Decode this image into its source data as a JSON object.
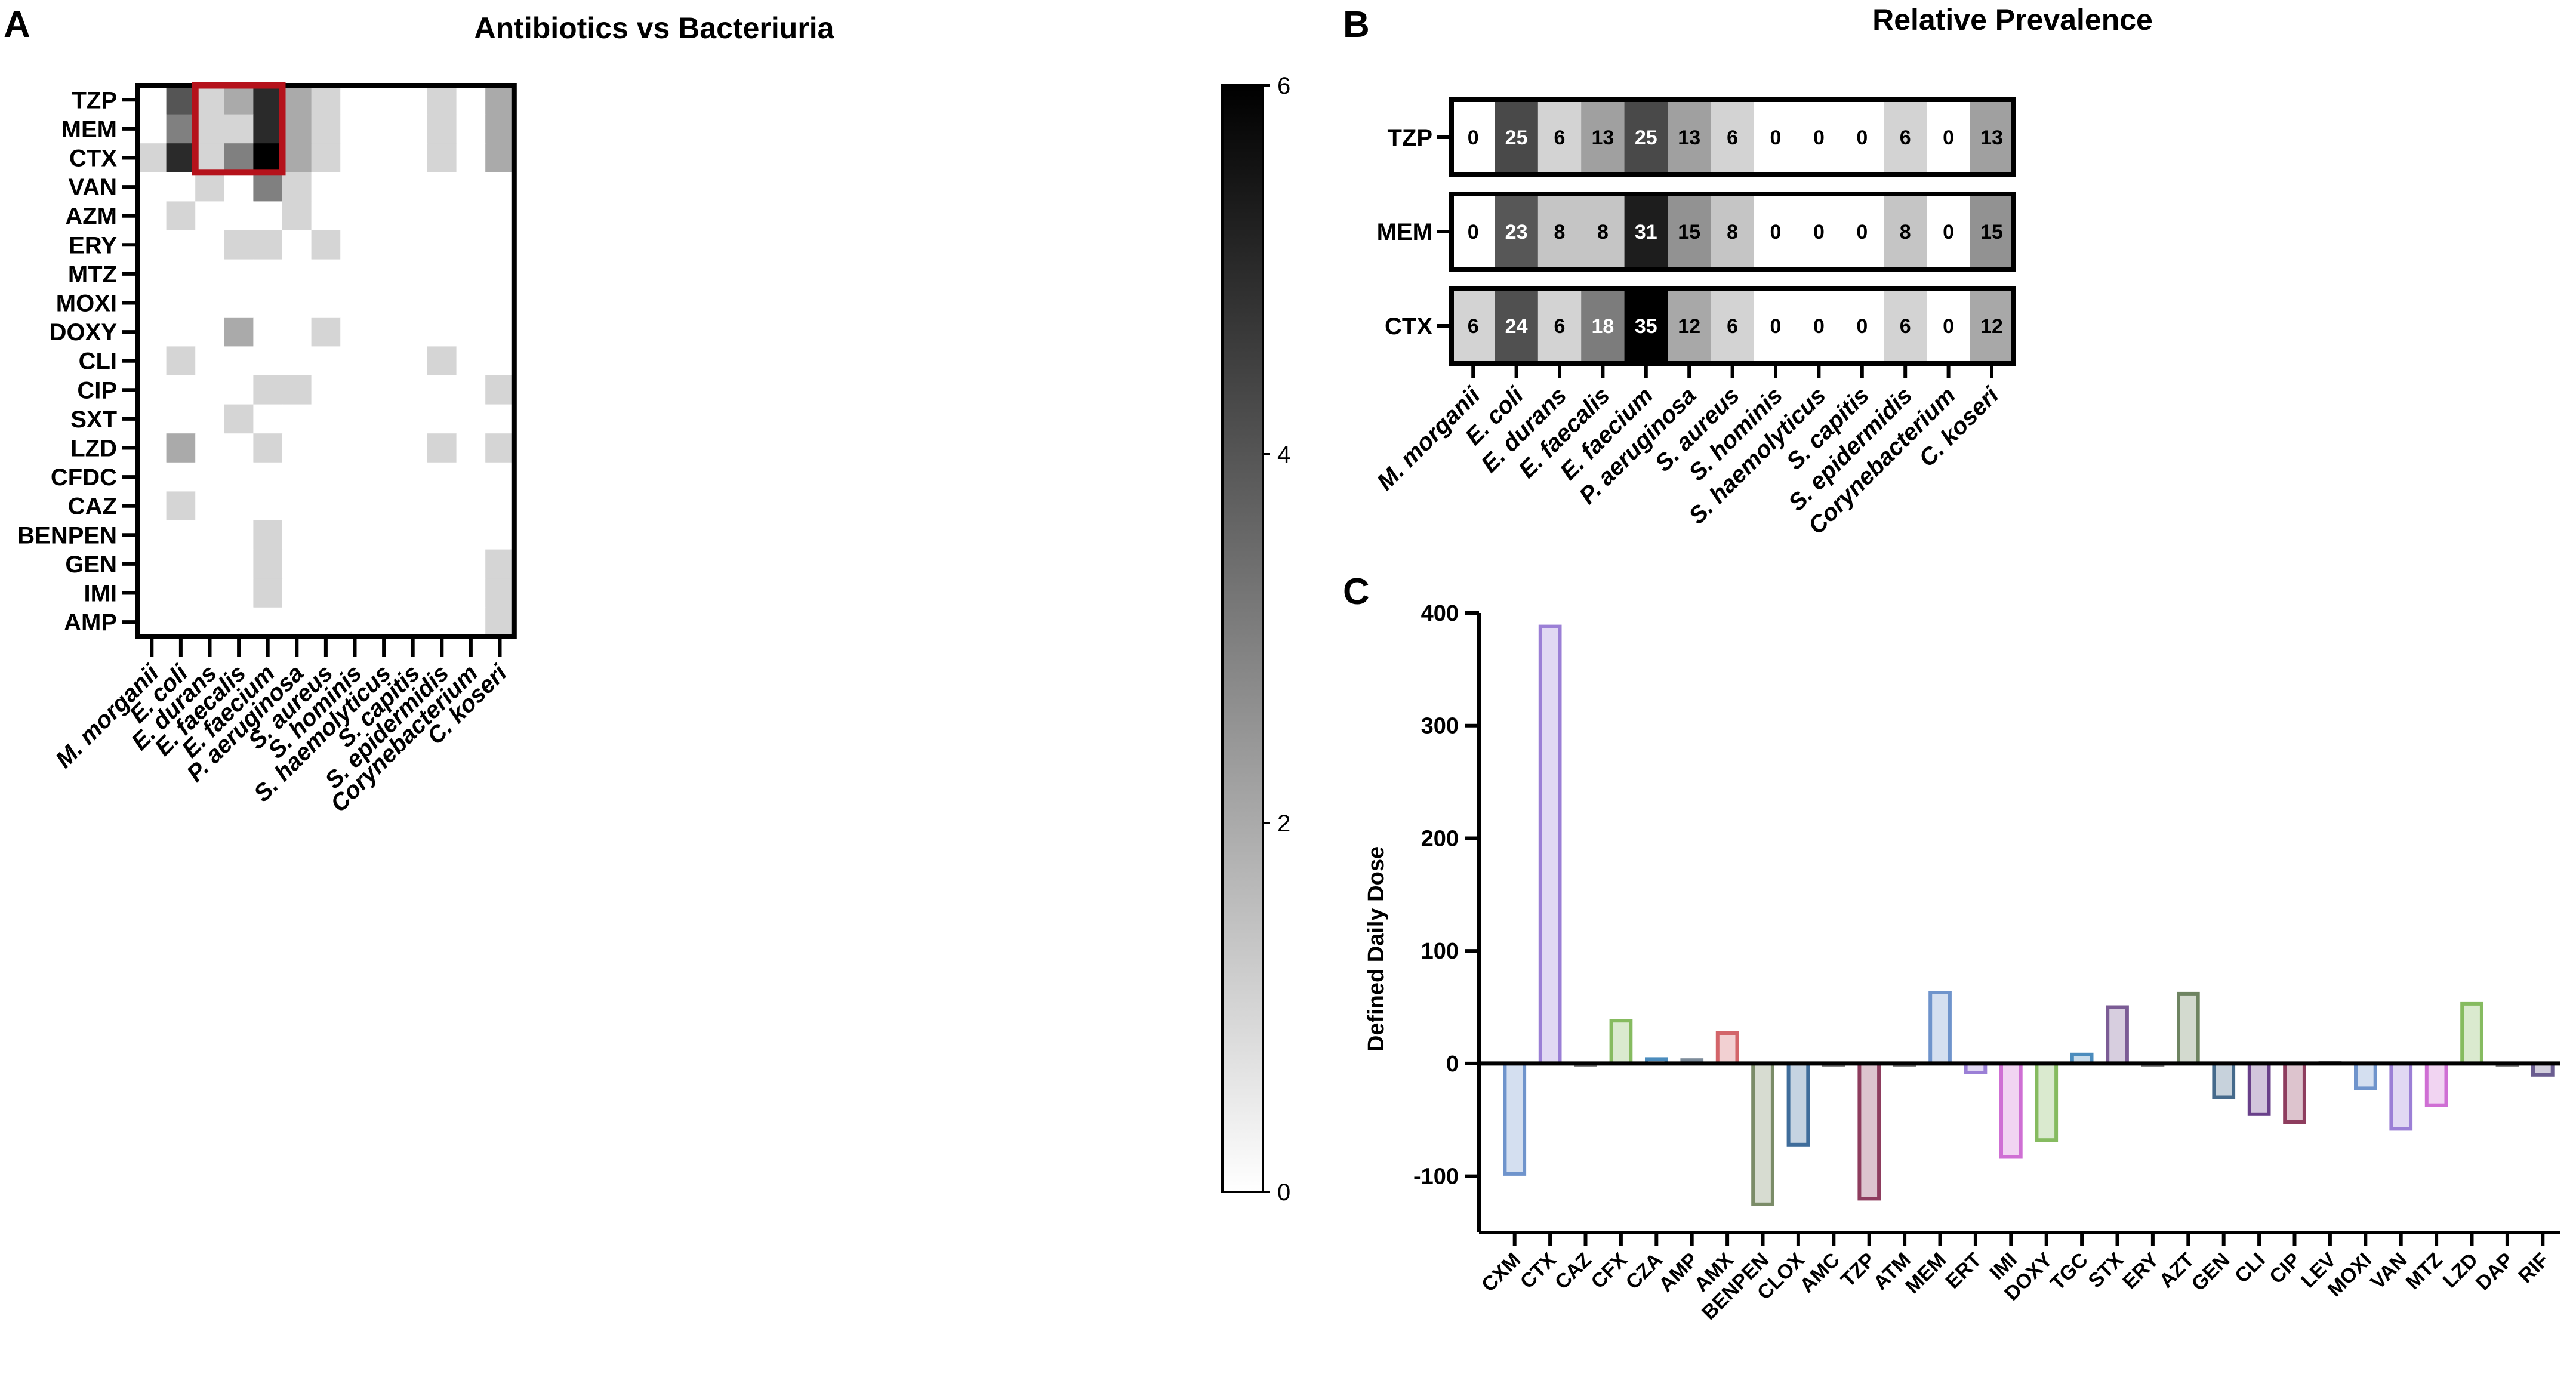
{
  "panels": {
    "a_letter": "A",
    "b_letter": "B",
    "c_letter": "C"
  },
  "colors": {
    "grey_max": "#000000",
    "grey_min": "#ffffff",
    "highlight_box": "#b5121b",
    "axis": "#000000"
  },
  "chart_data": [
    {
      "id": "A",
      "type": "heatmap",
      "title": "Antibiotics vs Bacteriuria",
      "rows": [
        "TZP",
        "MEM",
        "CTX",
        "VAN",
        "AZM",
        "ERY",
        "MTZ",
        "MOXI",
        "DOXY",
        "CLI",
        "CIP",
        "SXT",
        "LZD",
        "CFDC",
        "CAZ",
        "BENPEN",
        "GEN",
        "IMI",
        "AMP"
      ],
      "columns": [
        "M. morganii",
        "E. coli",
        "E. durans",
        "E. faecalis",
        "E. faecium",
        "P. aeruginosa",
        "S. aureus",
        "S. hominis",
        "S. haemolyticus",
        "S. capitis",
        "S. epidermidis",
        "Corynebacterium",
        "C. koseri"
      ],
      "values": [
        [
          0,
          4,
          1,
          2,
          5,
          2,
          1,
          0,
          0,
          0,
          1,
          0,
          2
        ],
        [
          0,
          3,
          1,
          1,
          5,
          2,
          1,
          0,
          0,
          0,
          1,
          0,
          2
        ],
        [
          1,
          5,
          1,
          3,
          6,
          2,
          1,
          0,
          0,
          0,
          1,
          0,
          2
        ],
        [
          0,
          0,
          1,
          0,
          3,
          1,
          0,
          0,
          0,
          0,
          0,
          0,
          0
        ],
        [
          0,
          1,
          0,
          0,
          0,
          1,
          0,
          0,
          0,
          0,
          0,
          0,
          0
        ],
        [
          0,
          0,
          0,
          1,
          1,
          0,
          1,
          0,
          0,
          0,
          0,
          0,
          0
        ],
        [
          0,
          0,
          0,
          0,
          0,
          0,
          0,
          0,
          0,
          0,
          0,
          0,
          0
        ],
        [
          0,
          0,
          0,
          0,
          0,
          0,
          0,
          0,
          0,
          0,
          0,
          0,
          0
        ],
        [
          0,
          0,
          0,
          2,
          0,
          0,
          1,
          0,
          0,
          0,
          0,
          0,
          0
        ],
        [
          0,
          1,
          0,
          0,
          0,
          0,
          0,
          0,
          0,
          0,
          1,
          0,
          0
        ],
        [
          0,
          0,
          0,
          0,
          1,
          1,
          0,
          0,
          0,
          0,
          0,
          0,
          1
        ],
        [
          0,
          0,
          0,
          1,
          0,
          0,
          0,
          0,
          0,
          0,
          0,
          0,
          0
        ],
        [
          0,
          2,
          0,
          0,
          1,
          0,
          0,
          0,
          0,
          0,
          1,
          0,
          1
        ],
        [
          0,
          0,
          0,
          0,
          0,
          0,
          0,
          0,
          0,
          0,
          0,
          0,
          0
        ],
        [
          0,
          1,
          0,
          0,
          0,
          0,
          0,
          0,
          0,
          0,
          0,
          0,
          0
        ],
        [
          0,
          0,
          0,
          0,
          1,
          0,
          0,
          0,
          0,
          0,
          0,
          0,
          0
        ],
        [
          0,
          0,
          0,
          0,
          1,
          0,
          0,
          0,
          0,
          0,
          0,
          0,
          1
        ],
        [
          0,
          0,
          0,
          0,
          1,
          0,
          0,
          0,
          0,
          0,
          0,
          0,
          1
        ],
        [
          0,
          0,
          0,
          0,
          0,
          0,
          0,
          0,
          0,
          0,
          0,
          0,
          1
        ]
      ],
      "colorbar": {
        "min": 0,
        "max": 6,
        "ticks": [
          0,
          2,
          4,
          6
        ],
        "tick_labels": [
          "0",
          "2",
          "4",
          "6"
        ]
      },
      "highlight": {
        "row_start": 0,
        "row_end": 2,
        "col_start": 2,
        "col_end": 4
      }
    },
    {
      "id": "B",
      "type": "heatmap",
      "title": "Relative Prevalence",
      "rows": [
        "TZP",
        "MEM",
        "CTX"
      ],
      "columns": [
        "M. morganii",
        "E. coli",
        "E. durans",
        "E. faecalis",
        "E. faecium",
        "P. aeruginosa",
        "S. aureus",
        "S. hominis",
        "S. haemolyticus",
        "S. capitis",
        "S. epidermidis",
        "Corynebacterium",
        "C. koseri"
      ],
      "values": [
        [
          0,
          25,
          6,
          13,
          25,
          13,
          6,
          0,
          0,
          0,
          6,
          0,
          13
        ],
        [
          0,
          23,
          8,
          8,
          31,
          15,
          8,
          0,
          0,
          0,
          8,
          0,
          15
        ],
        [
          6,
          24,
          6,
          18,
          35,
          12,
          6,
          0,
          0,
          0,
          6,
          0,
          12
        ]
      ]
    },
    {
      "id": "C",
      "type": "bar",
      "categories": [
        "CXM",
        "CTX",
        "CAZ",
        "CFX",
        "CZA",
        "AMP",
        "AMX",
        "BENPEN",
        "CLOX",
        "AMC",
        "TZP",
        "ATM",
        "MEM",
        "ERT",
        "IMI",
        "DOXY",
        "TGC",
        "STX",
        "ERY",
        "AZT",
        "GEN",
        "CLI",
        "CIP",
        "LEV",
        "MOXI",
        "VAN",
        "MTZ",
        "LZD",
        "DAP",
        "RIF"
      ],
      "values": [
        -98,
        388,
        0,
        38,
        4,
        3,
        27,
        -125,
        -72,
        0,
        -120,
        0,
        63,
        -8,
        -83,
        -68,
        8,
        50,
        0,
        62,
        -30,
        -45,
        -52,
        1,
        -22,
        -58,
        -37,
        53,
        0,
        -10
      ],
      "bar_colors": [
        "#6f94cc",
        "#9b7fd6",
        "#777777",
        "#86bb60",
        "#4b8cbd",
        "#7d8c9a",
        "#d3656a",
        "#7b8c68",
        "#3f6d9b",
        "#777777",
        "#8e3d5e",
        "#777777",
        "#6f94cc",
        "#9b7fd6",
        "#cf6fd4",
        "#86bb60",
        "#4b8cbd",
        "#7b5c95",
        "#777777",
        "#6e8461",
        "#456a8c",
        "#69408a",
        "#8e3d5e",
        "#999999",
        "#6f94cc",
        "#9b7fd6",
        "#cf6fd4",
        "#86bb60",
        "#777777",
        "#6a5d90"
      ],
      "ylabel": "Defined Daily Dose",
      "xlabel": "",
      "ylim": [
        -150,
        400
      ],
      "yticks": [
        -100,
        0,
        100,
        200,
        300,
        400
      ],
      "ytick_labels": [
        "-100",
        "0",
        "100",
        "200",
        "300",
        "400"
      ]
    }
  ]
}
